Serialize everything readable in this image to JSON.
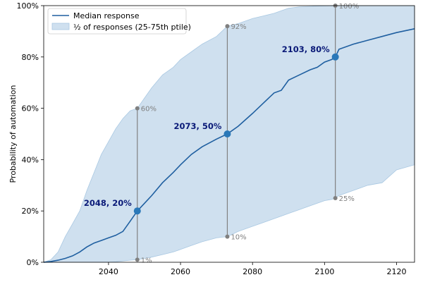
{
  "chart_data": {
    "type": "area",
    "ylabel": "Probability of automation",
    "xlabel": "",
    "title": "",
    "xlim": [
      2022,
      2125
    ],
    "ylim": [
      0,
      100
    ],
    "x_ticks": [
      2040,
      2060,
      2080,
      2100,
      2120
    ],
    "y_ticks": [
      0,
      20,
      40,
      60,
      80,
      100
    ],
    "y_tick_labels": [
      "0%",
      "20%",
      "40%",
      "60%",
      "80%",
      "100%"
    ],
    "grid": false,
    "legend_position": "top-left",
    "legend": {
      "median_label": "Median response",
      "band_label": "½ of responses (25-75th ptile)"
    },
    "colors": {
      "median": "#1f5fa0",
      "band": "#cfe0ef",
      "band_edge": "#a9c8e2",
      "markers": "#2a78b8",
      "vlines": "#808080",
      "annotation": "#0a1a78"
    },
    "series": [
      {
        "name": "Median response",
        "x": [
          2022,
          2024,
          2026,
          2028,
          2030,
          2032,
          2034,
          2036,
          2038,
          2040,
          2042,
          2044,
          2046,
          2048,
          2050,
          2052,
          2055,
          2058,
          2060,
          2063,
          2066,
          2070,
          2073,
          2076,
          2080,
          2083,
          2086,
          2088,
          2090,
          2093,
          2096,
          2098,
          2100,
          2102,
          2103,
          2104,
          2108,
          2112,
          2116,
          2120,
          2125
        ],
        "y": [
          0,
          0.3,
          0.8,
          1.5,
          2.5,
          4,
          6,
          7.5,
          8.5,
          9.5,
          10.5,
          12,
          16,
          20,
          23,
          26,
          31,
          35,
          38,
          42,
          45,
          48,
          50,
          53,
          58,
          62,
          66,
          67,
          71,
          73,
          75,
          76,
          78,
          79,
          80,
          83,
          85,
          86.5,
          88,
          89.5,
          91
        ]
      },
      {
        "name": "½ of responses (25-75th ptile)",
        "x": [
          2022,
          2024,
          2026,
          2028,
          2030,
          2032,
          2034,
          2036,
          2038,
          2040,
          2042,
          2044,
          2046,
          2048,
          2050,
          2052,
          2055,
          2058,
          2060,
          2063,
          2066,
          2070,
          2073,
          2076,
          2080,
          2083,
          2086,
          2088,
          2090,
          2093,
          2096,
          2098,
          2100,
          2102,
          2103,
          2104,
          2108,
          2112,
          2116,
          2120,
          2125
        ],
        "lower": [
          0,
          0,
          0,
          0,
          0,
          0,
          0,
          0,
          0,
          0,
          0.2,
          0.5,
          0.8,
          1,
          1.5,
          2,
          3,
          4,
          5,
          6.5,
          8,
          9.5,
          10,
          12,
          14,
          15.5,
          17,
          18,
          19,
          20.5,
          22,
          23,
          24,
          24.5,
          25,
          26,
          28,
          30,
          31,
          36,
          38
        ],
        "upper": [
          0,
          1,
          4,
          10,
          15,
          20,
          28,
          35,
          42,
          47,
          52,
          56,
          59,
          60,
          64,
          68,
          73,
          76,
          79,
          82,
          85,
          88,
          92,
          93,
          95,
          96,
          97,
          98,
          99,
          99.5,
          99.7,
          99.8,
          99.9,
          100,
          100,
          100,
          100,
          100,
          100,
          100,
          100
        ]
      }
    ],
    "highlights": [
      {
        "x": 2048,
        "y": 20,
        "low": 1,
        "high": 60,
        "label": "2048, 20%",
        "low_label": "1%",
        "high_label": "60%"
      },
      {
        "x": 2073,
        "y": 50,
        "low": 10,
        "high": 92,
        "label": "2073, 50%",
        "low_label": "10%",
        "high_label": "92%"
      },
      {
        "x": 2103,
        "y": 80,
        "low": 25,
        "high": 100,
        "label": "2103, 80%",
        "low_label": "25%",
        "high_label": "100%"
      }
    ]
  }
}
